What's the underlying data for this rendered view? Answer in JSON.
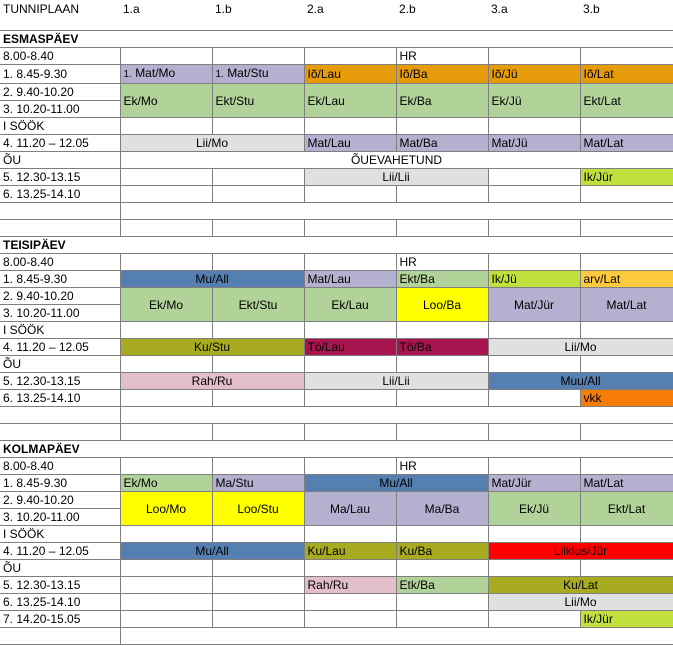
{
  "header": {
    "title": "TUNNIPLAAN",
    "classes": [
      "1.a",
      "1.b",
      "2.a",
      "2.b",
      "3.a",
      "3.b"
    ]
  },
  "colors": {
    "lilac": "#b4b0cf",
    "orange": "#e69c0a",
    "green": "#b1d39a",
    "lightgray": "#e0e0e0",
    "lime": "#c1e03d",
    "blue": "#567fb1",
    "lightorange": "#fbcb3d",
    "yellow": "#ffff00",
    "olive": "#a8ab1f",
    "crimson": "#a8154e",
    "pink": "#e2bfc9",
    "brightorange": "#f77d0b",
    "red": "#ff0000"
  },
  "days": [
    {
      "name": "ESMASPÄEV",
      "times": [
        "8.00-8.40",
        "1. 8.45-9.30",
        "2. 9.40-10.20",
        "3. 10.20-11.00",
        "I SÖÖK",
        "4. 11.20 – 12.05",
        "ÕU",
        "5. 12.30-13.15",
        "6. 13.25-14.10"
      ],
      "cells": {
        "hr": "HR",
        "r1": [
          {
            "n": "1.",
            "t": "Mat/Mo"
          },
          {
            "n": "1.",
            "t": "Mat/Stu"
          },
          "Iõ/Lau",
          "Iõ/Ba",
          "Iõ/Jü",
          "Iõ/Lat"
        ],
        "r23": [
          "Ek/Mo",
          "Ekt/Stu",
          "Ek/Lau",
          "Ek/Ba",
          "Ek/Jü",
          "Ekt/Lat"
        ],
        "r4": [
          "Lii/Mo",
          "Mat/Lau",
          "Mat/Ba",
          "Mat/Jü",
          "Mat/Lat"
        ],
        "ou": "ÕUEVAHETUND",
        "r5": [
          "Lii/Lii",
          "Ik/Jür"
        ]
      }
    },
    {
      "name": "TEISIPÄEV",
      "times": [
        "8.00-8.40",
        "1. 8.45-9.30",
        "2. 9.40-10.20",
        "3. 10.20-11.00",
        "I SÖÖK",
        "4. 11.20 – 12.05",
        "ÕU",
        "5. 12.30-13.15",
        "6. 13.25-14.10"
      ],
      "cells": {
        "hr": "HR",
        "r1": [
          "Mu/All",
          "Mat/Lau",
          "Ekt/Ba",
          "Ik/Jü",
          "arv/Lat"
        ],
        "r23": [
          "Ek/Mo",
          "Ekt/Stu",
          "Ek/Lau",
          "Loo/Ba",
          "Mat/Jür",
          "Mat/Lat"
        ],
        "r4": [
          "Ku/Stu",
          "Tö/Lau",
          "Tö/Ba",
          "Lii/Mo"
        ],
        "r5": [
          "Rah/Ru",
          "Lii/Lii",
          "Muu/All"
        ],
        "r6": [
          "vkk"
        ]
      }
    },
    {
      "name": "KOLMAPÄEV",
      "times": [
        "8.00-8.40",
        "1. 8.45-9.30",
        "2. 9.40-10.20",
        "3. 10.20-11.00",
        "I SÖÖK",
        "4. 11.20 – 12.05",
        "ÕU",
        "5. 12.30-13.15",
        "6. 13.25-14.10",
        "7. 14.20-15.05"
      ],
      "cells": {
        "hr": "HR",
        "r1": [
          "Ek/Mo",
          "Ma/Stu",
          "Mu/All",
          "Mat/Jür",
          "Mat/Lat"
        ],
        "r23": [
          "Loo/Mo",
          "Loo/Stu",
          "Ma/Lau",
          "Ma/Ba",
          "Ek/Jü",
          "Ekt/Lat"
        ],
        "r4": [
          "Mu/All",
          "Ku/Lau",
          "Ku/Ba",
          "Liiklus/Jür"
        ],
        "r5": [
          "Rah/Ru",
          "Etk/Ba",
          "Ku/Lat"
        ],
        "r6": [
          "Lii/Mo"
        ],
        "r7": [
          "Ik/Jür"
        ]
      }
    }
  ]
}
